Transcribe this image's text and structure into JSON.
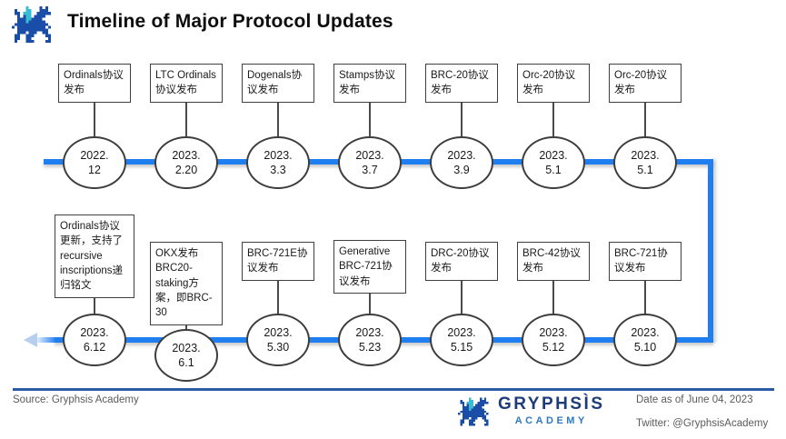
{
  "header": {
    "title": "Timeline of Major Protocol Updates"
  },
  "timeline": {
    "top_row": [
      {
        "label": "Ordinals协议发布",
        "date_line1": "2022.",
        "date_line2": "12"
      },
      {
        "label": "LTC Ordinals协议发布",
        "date_line1": "2023.",
        "date_line2": "2.20"
      },
      {
        "label": "Dogenals协议发布",
        "date_line1": "2023.",
        "date_line2": "3.3"
      },
      {
        "label": "Stamps协议发布",
        "date_line1": "2023.",
        "date_line2": "3.7"
      },
      {
        "label": "BRC-20协议发布",
        "date_line1": "2023.",
        "date_line2": "3.9"
      },
      {
        "label": "Orc-20协议发布",
        "date_line1": "2023.",
        "date_line2": "5.1"
      },
      {
        "label": "Orc-20协议发布",
        "date_line1": "2023.",
        "date_line2": "5.1"
      }
    ],
    "bottom_row": [
      {
        "label": "Ordinals协议更新，支持了recursive inscriptions递归铭文",
        "date_line1": "2023.",
        "date_line2": "6.12"
      },
      {
        "label": "OKX发布BRC20-staking方案，即BRC-30",
        "date_line1": "2023.",
        "date_line2": "6.1"
      },
      {
        "label": "BRC-721E协议发布",
        "date_line1": "2023.",
        "date_line2": "5.30"
      },
      {
        "label": "Generative BRC-721协议发布",
        "date_line1": "2023.",
        "date_line2": "5.23"
      },
      {
        "label": "DRC-20协议发布",
        "date_line1": "2023.",
        "date_line2": "5.15"
      },
      {
        "label": "BRC-42协议发布",
        "date_line1": "2023.",
        "date_line2": "5.12"
      },
      {
        "label": "BRC-721协议发布",
        "date_line1": "2023.",
        "date_line2": "5.10"
      }
    ]
  },
  "footer": {
    "source": "Source: Gryphsis Academy",
    "logo_text": "GRYPHSÌS",
    "logo_subtext": "ACADEMY",
    "date_note": "Date as of June 04, 2023",
    "twitter": "Twitter: @GryphsisAcademy"
  },
  "colors": {
    "timeline_blue": "#1f7ff0",
    "divider_navy": "#2d5aa5",
    "logo_navy": "#1e3c78",
    "logo_blue": "#2e78c2",
    "box_border": "#3f3f3f"
  }
}
